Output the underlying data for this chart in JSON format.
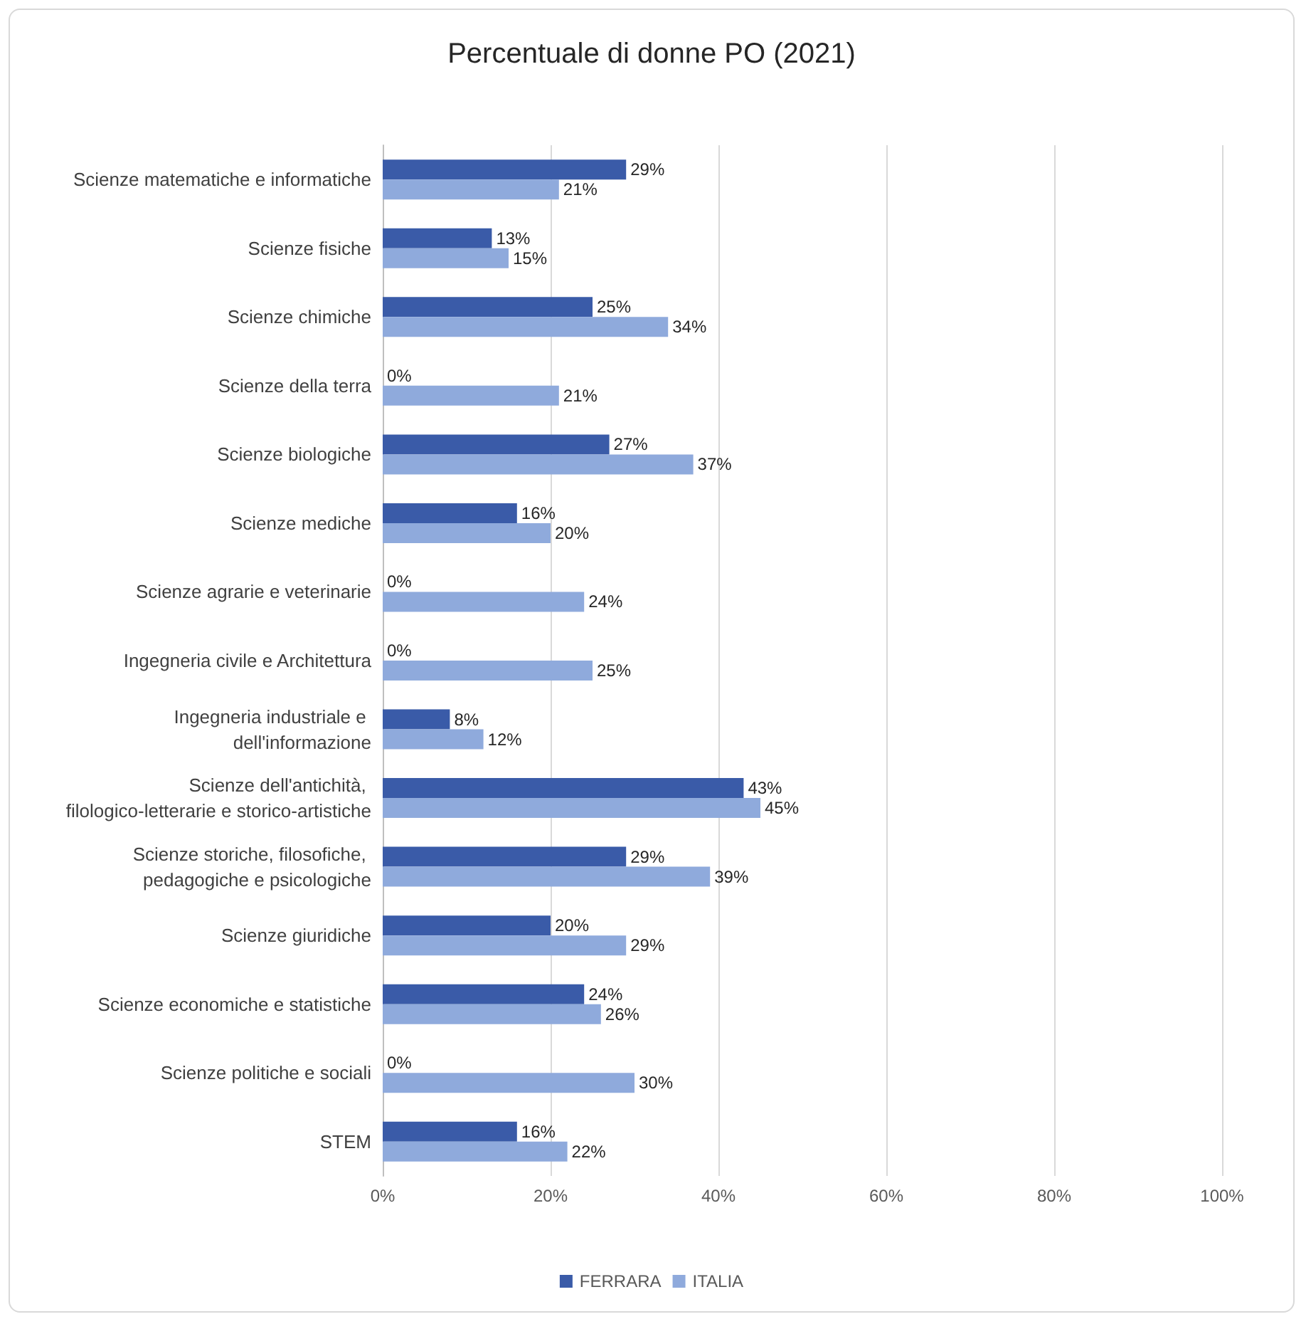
{
  "chart_data": {
    "type": "bar",
    "orientation": "horizontal",
    "title": "Percentuale di donne PO (2021)",
    "categories": [
      "Scienze matematiche e informatiche",
      "Scienze fisiche",
      "Scienze chimiche",
      "Scienze della terra",
      "Scienze biologiche",
      "Scienze mediche",
      "Scienze agrarie e veterinarie",
      "Ingegneria civile e Architettura",
      "Ingegneria industriale e dell'informazione",
      "Scienze dell'antichità, filologico-letterarie e storico-artistiche",
      "Scienze storiche, filosofiche, pedagogiche e psicologiche",
      "Scienze giuridiche",
      "Scienze economiche e statistiche",
      "Scienze politiche e sociali",
      "STEM"
    ],
    "series": [
      {
        "name": "FERRARA",
        "color": "#3a5ba8",
        "values": [
          29,
          13,
          25,
          0,
          27,
          16,
          0,
          0,
          8,
          43,
          29,
          20,
          24,
          0,
          16
        ],
        "value_labels": [
          "29%",
          "13%",
          "25%",
          "0%",
          "27%",
          "16%",
          "0%",
          "0%",
          "8%",
          "43%",
          "29%",
          "20%",
          "24%",
          "0%",
          "16%"
        ]
      },
      {
        "name": "ITALIA",
        "color": "#8faadc",
        "values": [
          21,
          15,
          34,
          21,
          37,
          20,
          24,
          25,
          12,
          45,
          39,
          29,
          26,
          30,
          22
        ],
        "value_labels": [
          "21%",
          "15%",
          "34%",
          "21%",
          "37%",
          "20%",
          "24%",
          "25%",
          "12%",
          "45%",
          "39%",
          "29%",
          "26%",
          "30%",
          "22%"
        ]
      }
    ],
    "xlim": [
      0,
      100
    ],
    "xticks": [
      {
        "value": 0,
        "label": "0%"
      },
      {
        "value": 20,
        "label": "20%"
      },
      {
        "value": 40,
        "label": "40%"
      },
      {
        "value": 60,
        "label": "60%"
      },
      {
        "value": 80,
        "label": "80%"
      },
      {
        "value": 100,
        "label": "100%"
      }
    ],
    "grid": "x",
    "legend": "bottom"
  }
}
